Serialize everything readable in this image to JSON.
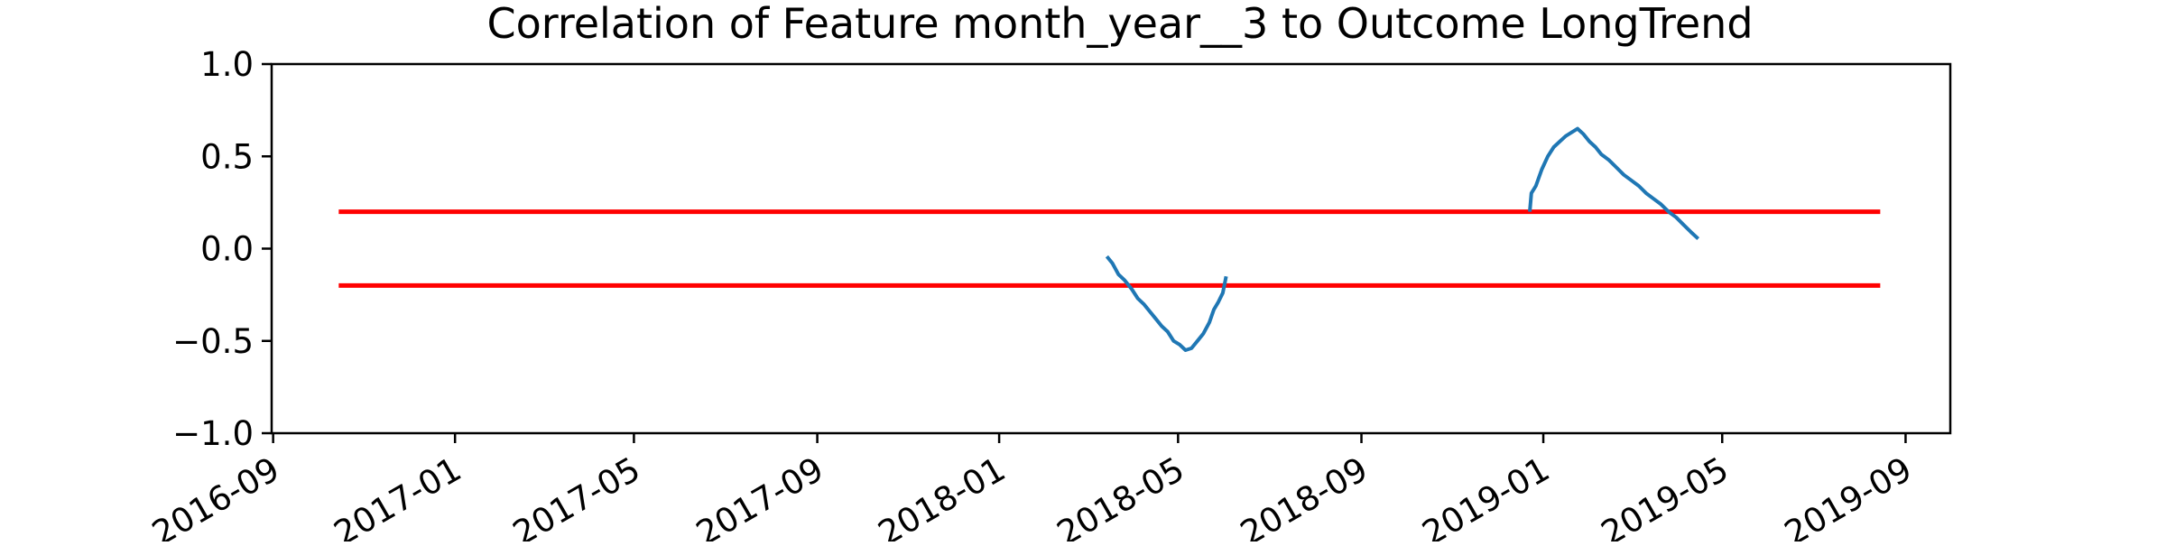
{
  "chart_data": {
    "type": "line",
    "title": "Correlation of Feature month_year__3 to Outcome LongTrend",
    "xlabel": "",
    "ylabel": "",
    "ylim": [
      -1.0,
      1.0
    ],
    "xlim": [
      "2016-08-31",
      "2019-10-01"
    ],
    "y_ticks": [
      -1.0,
      -0.5,
      0.0,
      0.5,
      1.0
    ],
    "y_tick_labels": [
      "−1.0",
      "−0.5",
      "0.0",
      "0.5",
      "1.0"
    ],
    "x_ticks": [
      "2016-09-01",
      "2017-01-01",
      "2017-05-01",
      "2017-09-01",
      "2018-01-01",
      "2018-05-01",
      "2018-09-01",
      "2019-01-01",
      "2019-05-01",
      "2019-09-01"
    ],
    "x_tick_labels": [
      "2016-09",
      "2017-01",
      "2017-05",
      "2017-09",
      "2018-01",
      "2018-05",
      "2018-09",
      "2019-01",
      "2019-05",
      "2019-09"
    ],
    "grid": false,
    "threshold_lines": {
      "color": "#ff0000",
      "x_start": "2016-10-15",
      "x_end": "2019-08-15",
      "y_values": [
        0.2,
        -0.2
      ]
    },
    "series": [
      {
        "color": "#1f77b4",
        "segments": [
          {
            "x": [
              "2018-03-15",
              "2018-03-18",
              "2018-03-22",
              "2018-03-26",
              "2018-03-31",
              "2018-04-04",
              "2018-04-08",
              "2018-04-12",
              "2018-04-16",
              "2018-04-20",
              "2018-04-24",
              "2018-04-28",
              "2018-05-02",
              "2018-05-06",
              "2018-05-10",
              "2018-05-14",
              "2018-05-18",
              "2018-05-22",
              "2018-05-25",
              "2018-05-28",
              "2018-05-31",
              "2018-06-02"
            ],
            "y": [
              -0.05,
              -0.08,
              -0.14,
              -0.17,
              -0.22,
              -0.27,
              -0.3,
              -0.34,
              -0.38,
              -0.42,
              -0.45,
              -0.5,
              -0.52,
              -0.55,
              -0.54,
              -0.5,
              -0.46,
              -0.4,
              -0.33,
              -0.29,
              -0.24,
              -0.16
            ]
          },
          {
            "x": [
              "2018-12-23",
              "2018-12-24",
              "2018-12-27",
              "2018-12-31",
              "2019-01-04",
              "2019-01-08",
              "2019-01-12",
              "2019-01-16",
              "2019-01-20",
              "2019-01-24",
              "2019-01-28",
              "2019-02-01",
              "2019-02-05",
              "2019-02-09",
              "2019-02-14",
              "2019-02-19",
              "2019-02-24",
              "2019-03-01",
              "2019-03-06",
              "2019-03-11",
              "2019-03-16",
              "2019-03-21",
              "2019-03-26",
              "2019-03-31",
              "2019-04-05",
              "2019-04-10",
              "2019-04-14"
            ],
            "y": [
              0.21,
              0.3,
              0.34,
              0.43,
              0.5,
              0.55,
              0.58,
              0.61,
              0.63,
              0.65,
              0.62,
              0.58,
              0.55,
              0.51,
              0.48,
              0.44,
              0.4,
              0.37,
              0.34,
              0.3,
              0.27,
              0.24,
              0.2,
              0.17,
              0.13,
              0.09,
              0.06
            ]
          }
        ]
      }
    ]
  }
}
